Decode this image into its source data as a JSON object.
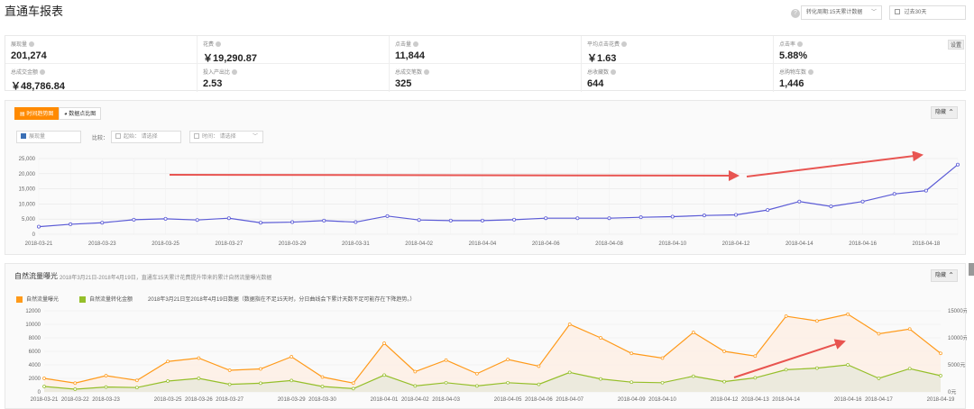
{
  "page": {
    "title": "直通车报表"
  },
  "filters": {
    "period_select": "转化周期:15天累计数据",
    "date_select": "过去30天"
  },
  "stats": {
    "settings_label": "设置",
    "items": [
      {
        "label": "展现量",
        "value": "201,274"
      },
      {
        "label": "花费",
        "value": "￥19,290.87"
      },
      {
        "label": "点击量",
        "value": "11,844"
      },
      {
        "label": "平均点击花费",
        "value": "￥1.63"
      },
      {
        "label": "点击率",
        "value": "5.88%"
      },
      {
        "label": "总成交金额",
        "value": "￥48,786.84"
      },
      {
        "label": "投入产出比",
        "value": "2.53"
      },
      {
        "label": "总成交笔数",
        "value": "325"
      },
      {
        "label": "总收藏数",
        "value": "644"
      },
      {
        "label": "总购物车数",
        "value": "1,446"
      }
    ]
  },
  "panel1": {
    "tab_trend": "时间趋势图",
    "tab_scatter": "数据点比图",
    "hide_label": "隐藏",
    "metric_input": "展现量",
    "compare_label": "比较：",
    "compare_start": "起始：  请选择",
    "compare_time": "时间：  请选择"
  },
  "panel2": {
    "title": "自然流量曝光",
    "subtitle": "2018年3月21日-2018年4月19日，直通车15天累计花费提升带来的累计自然流量曝光数据",
    "hide_label": "隐藏",
    "legend_a": "自然流量曝光",
    "legend_b": "自然流量转化金额",
    "note": "2018年3月21日至2018年4月19日数据（数据指在不足15天时，分日曲线会下累计天数不足可能存在下降趋势。）"
  },
  "colors": {
    "accent": "#ff8a00",
    "line1": "#5b5bd6",
    "line_orange": "#ff9a1a",
    "line_green": "#95bf2a",
    "arrow": "#e53935"
  },
  "chart_data": [
    {
      "type": "line",
      "title": "展现量",
      "x": [
        "2018-03-21",
        "2018-03-22",
        "2018-03-23",
        "2018-03-24",
        "2018-03-25",
        "2018-03-26",
        "2018-03-27",
        "2018-03-28",
        "2018-03-29",
        "2018-03-30",
        "2018-03-31",
        "2018-04-01",
        "2018-04-02",
        "2018-04-03",
        "2018-04-04",
        "2018-04-05",
        "2018-04-06",
        "2018-04-07",
        "2018-04-08",
        "2018-04-09",
        "2018-04-10",
        "2018-04-11",
        "2018-04-12",
        "2018-04-13",
        "2018-04-14",
        "2018-04-15",
        "2018-04-16",
        "2018-04-17",
        "2018-04-18",
        "2018-04-19"
      ],
      "x_tick_labels": [
        "2018-03-21",
        "2018-03-23",
        "2018-03-25",
        "2018-03-27",
        "2018-03-29",
        "2018-03-31",
        "2018-04-02",
        "2018-04-04",
        "2018-04-06",
        "2018-04-08",
        "2018-04-10",
        "2018-04-12",
        "2018-04-14",
        "2018-04-16",
        "2018-04-18"
      ],
      "series": [
        {
          "name": "展现量",
          "values": [
            2500,
            3300,
            3800,
            4800,
            5100,
            4700,
            5300,
            3800,
            4000,
            4500,
            4000,
            6000,
            4700,
            4500,
            4500,
            4800,
            5300,
            5300,
            5300,
            5600,
            5800,
            6200,
            6400,
            8000,
            10800,
            9200,
            10800,
            13300,
            14400,
            23000
          ]
        }
      ],
      "ylim": [
        0,
        25000
      ],
      "y_ticks": [
        "0",
        "5,000",
        "10,000",
        "15,000",
        "20,000",
        "25,000"
      ],
      "y_tick_values": [
        0,
        5000,
        10000,
        15000,
        20000,
        25000
      ]
    },
    {
      "type": "line",
      "title": "自然流量曝光",
      "x": [
        "2018-03-21",
        "2018-03-22",
        "2018-03-23",
        "2018-03-24",
        "2018-03-25",
        "2018-03-26",
        "2018-03-27",
        "2018-03-28",
        "2018-03-29",
        "2018-03-30",
        "2018-03-31",
        "2018-04-01",
        "2018-04-02",
        "2018-04-03",
        "2018-04-04",
        "2018-04-05",
        "2018-04-06",
        "2018-04-07",
        "2018-04-08",
        "2018-04-09",
        "2018-04-10",
        "2018-04-11",
        "2018-04-12",
        "2018-04-13",
        "2018-04-14",
        "2018-04-15",
        "2018-04-16",
        "2018-04-17",
        "2018-04-18",
        "2018-04-19"
      ],
      "x_tick_labels": [
        "2018-03-21",
        "2018-03-22",
        "2018-03-23",
        "2018-03-25",
        "2018-03-26",
        "2018-03-27",
        "2018-03-29",
        "2018-03-30",
        "2018-04-01",
        "2018-04-02",
        "2018-04-03",
        "2018-04-05",
        "2018-04-06",
        "2018-04-07",
        "2018-04-09",
        "2018-04-10",
        "2018-04-12",
        "2018-04-13",
        "2018-04-14",
        "2018-04-16",
        "2018-04-17",
        "2018-04-19"
      ],
      "series": [
        {
          "name": "自然流量曝光",
          "axis": "left",
          "values": [
            2000,
            1300,
            2400,
            1700,
            4500,
            5000,
            3200,
            3400,
            5200,
            2200,
            1300,
            7200,
            3000,
            4700,
            2700,
            4800,
            3800,
            10000,
            8000,
            5700,
            5000,
            8800,
            6000,
            5300,
            11200,
            10500,
            11500,
            8600,
            9300,
            5700
          ]
        },
        {
          "name": "自然流量转化金额",
          "axis": "right",
          "values": [
            1000,
            500,
            900,
            800,
            2000,
            2500,
            1400,
            1600,
            2100,
            1000,
            600,
            3100,
            1100,
            1700,
            1100,
            1700,
            1400,
            3600,
            2400,
            1800,
            1700,
            2900,
            1900,
            2600,
            4100,
            4400,
            5000,
            2500,
            4300,
            3000
          ]
        }
      ],
      "ylim": [
        0,
        12000
      ],
      "y_ticks": [
        "0",
        "2000",
        "4000",
        "6000",
        "8000",
        "10000",
        "12000"
      ],
      "y_tick_values": [
        0,
        2000,
        4000,
        6000,
        8000,
        10000,
        12000
      ],
      "y2lim": [
        0,
        15000
      ],
      "y2_ticks": [
        "0元",
        "5000元",
        "10000元",
        "15000元"
      ],
      "y2_tick_values": [
        0,
        5000,
        10000,
        15000
      ]
    }
  ]
}
